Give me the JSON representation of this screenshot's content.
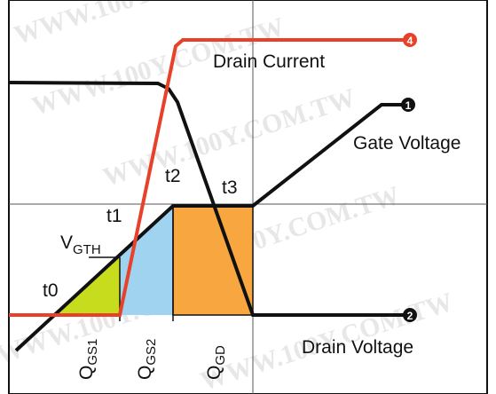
{
  "watermark": "WWW.100Y.COM.TW",
  "curves": {
    "drain_current": "Drain Current",
    "gate_voltage": "Gate Voltage",
    "drain_voltage": "Drain Voltage"
  },
  "times": [
    "t0",
    "t1",
    "t2",
    "t3"
  ],
  "threshold": {
    "main": "V",
    "sub": "GTH"
  },
  "charges": [
    {
      "main": "Q",
      "sub": "GS1"
    },
    {
      "main": "Q",
      "sub": "GS2"
    },
    {
      "main": "Q",
      "sub": "GD"
    }
  ],
  "markers": {
    "gate": "1",
    "drain_voltage": "2",
    "drain_current": "4"
  }
}
